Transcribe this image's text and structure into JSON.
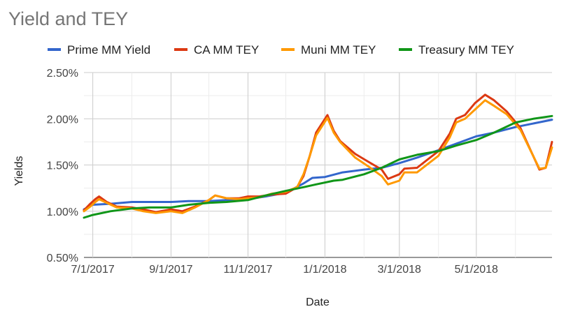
{
  "chart_data": {
    "type": "line",
    "title": "Yield and TEY",
    "xlabel": "Date",
    "ylabel": "Yields",
    "x_ticks": [
      "7/1/2017",
      "9/1/2017",
      "11/1/2017",
      "1/1/2018",
      "3/1/2018",
      "5/1/2018"
    ],
    "y_ticks": [
      "0.50%",
      "1.00%",
      "1.50%",
      "2.00%",
      "2.50%"
    ],
    "xlim": [
      "2017-06-24",
      "2018-06-30"
    ],
    "ylim": [
      0.5,
      2.5
    ],
    "grid": true,
    "legend_position": "top",
    "series": [
      {
        "name": "Prime MM Yield",
        "color": "#3366cc",
        "points": [
          [
            "2017-06-24",
            1.02
          ],
          [
            "2017-07-01",
            1.07
          ],
          [
            "2017-07-15",
            1.08
          ],
          [
            "2017-08-01",
            1.1
          ],
          [
            "2017-08-15",
            1.1
          ],
          [
            "2017-09-01",
            1.1
          ],
          [
            "2017-09-15",
            1.11
          ],
          [
            "2017-10-01",
            1.11
          ],
          [
            "2017-10-15",
            1.12
          ],
          [
            "2017-11-01",
            1.13
          ],
          [
            "2017-11-15",
            1.16
          ],
          [
            "2017-12-01",
            1.2
          ],
          [
            "2017-12-15",
            1.3
          ],
          [
            "2017-12-22",
            1.36
          ],
          [
            "2018-01-01",
            1.37
          ],
          [
            "2018-01-15",
            1.42
          ],
          [
            "2018-02-01",
            1.45
          ],
          [
            "2018-02-15",
            1.47
          ],
          [
            "2018-03-01",
            1.52
          ],
          [
            "2018-03-15",
            1.58
          ],
          [
            "2018-04-01",
            1.66
          ],
          [
            "2018-04-15",
            1.73
          ],
          [
            "2018-05-01",
            1.81
          ],
          [
            "2018-05-15",
            1.85
          ],
          [
            "2018-06-01",
            1.91
          ],
          [
            "2018-06-30",
            1.99
          ]
        ]
      },
      {
        "name": "CA MM TEY",
        "color": "#dc3912",
        "points": [
          [
            "2017-06-24",
            1.01
          ],
          [
            "2017-06-29",
            1.08
          ],
          [
            "2017-07-03",
            1.13
          ],
          [
            "2017-07-06",
            1.16
          ],
          [
            "2017-07-12",
            1.1
          ],
          [
            "2017-07-20",
            1.05
          ],
          [
            "2017-08-01",
            1.04
          ],
          [
            "2017-08-10",
            1.02
          ],
          [
            "2017-08-20",
            0.99
          ],
          [
            "2017-09-01",
            1.02
          ],
          [
            "2017-09-10",
            1.0
          ],
          [
            "2017-09-20",
            1.05
          ],
          [
            "2017-10-01",
            1.12
          ],
          [
            "2017-10-06",
            1.17
          ],
          [
            "2017-10-15",
            1.14
          ],
          [
            "2017-10-25",
            1.14
          ],
          [
            "2017-11-01",
            1.16
          ],
          [
            "2017-11-10",
            1.16
          ],
          [
            "2017-11-20",
            1.18
          ],
          [
            "2017-12-01",
            1.19
          ],
          [
            "2017-12-10",
            1.26
          ],
          [
            "2017-12-15",
            1.38
          ],
          [
            "2017-12-20",
            1.6
          ],
          [
            "2017-12-25",
            1.85
          ],
          [
            "2018-01-03",
            2.04
          ],
          [
            "2018-01-08",
            1.87
          ],
          [
            "2018-01-13",
            1.76
          ],
          [
            "2018-01-25",
            1.62
          ],
          [
            "2018-02-05",
            1.53
          ],
          [
            "2018-02-15",
            1.45
          ],
          [
            "2018-02-20",
            1.35
          ],
          [
            "2018-03-01",
            1.4
          ],
          [
            "2018-03-05",
            1.46
          ],
          [
            "2018-03-15",
            1.47
          ],
          [
            "2018-04-01",
            1.65
          ],
          [
            "2018-04-10",
            1.84
          ],
          [
            "2018-04-15",
            2.0
          ],
          [
            "2018-04-22",
            2.04
          ],
          [
            "2018-04-30",
            2.17
          ],
          [
            "2018-05-08",
            2.26
          ],
          [
            "2018-05-15",
            2.2
          ],
          [
            "2018-05-25",
            2.08
          ],
          [
            "2018-06-05",
            1.9
          ],
          [
            "2018-06-15",
            1.6
          ],
          [
            "2018-06-20",
            1.45
          ],
          [
            "2018-06-25",
            1.47
          ],
          [
            "2018-06-30",
            1.75
          ]
        ]
      },
      {
        "name": "Muni MM TEY",
        "color": "#ff9900",
        "points": [
          [
            "2017-06-24",
            1.0
          ],
          [
            "2017-06-29",
            1.05
          ],
          [
            "2017-07-03",
            1.1
          ],
          [
            "2017-07-06",
            1.13
          ],
          [
            "2017-07-12",
            1.09
          ],
          [
            "2017-07-20",
            1.04
          ],
          [
            "2017-08-01",
            1.03
          ],
          [
            "2017-08-10",
            1.0
          ],
          [
            "2017-08-20",
            0.98
          ],
          [
            "2017-09-01",
            1.0
          ],
          [
            "2017-09-10",
            0.98
          ],
          [
            "2017-09-20",
            1.04
          ],
          [
            "2017-10-01",
            1.12
          ],
          [
            "2017-10-06",
            1.17
          ],
          [
            "2017-10-15",
            1.14
          ],
          [
            "2017-10-25",
            1.13
          ],
          [
            "2017-11-01",
            1.14
          ],
          [
            "2017-11-10",
            1.15
          ],
          [
            "2017-11-20",
            1.19
          ],
          [
            "2017-12-01",
            1.21
          ],
          [
            "2017-12-10",
            1.26
          ],
          [
            "2017-12-15",
            1.4
          ],
          [
            "2017-12-20",
            1.6
          ],
          [
            "2017-12-25",
            1.82
          ],
          [
            "2018-01-03",
            2.01
          ],
          [
            "2018-01-08",
            1.85
          ],
          [
            "2018-01-13",
            1.75
          ],
          [
            "2018-01-25",
            1.58
          ],
          [
            "2018-02-05",
            1.48
          ],
          [
            "2018-02-15",
            1.38
          ],
          [
            "2018-02-20",
            1.29
          ],
          [
            "2018-03-01",
            1.33
          ],
          [
            "2018-03-05",
            1.42
          ],
          [
            "2018-03-15",
            1.42
          ],
          [
            "2018-04-01",
            1.6
          ],
          [
            "2018-04-10",
            1.8
          ],
          [
            "2018-04-15",
            1.96
          ],
          [
            "2018-04-22",
            2.0
          ],
          [
            "2018-04-30",
            2.1
          ],
          [
            "2018-05-08",
            2.2
          ],
          [
            "2018-05-15",
            2.14
          ],
          [
            "2018-05-25",
            2.05
          ],
          [
            "2018-06-05",
            1.88
          ],
          [
            "2018-06-15",
            1.6
          ],
          [
            "2018-06-20",
            1.46
          ],
          [
            "2018-06-25",
            1.47
          ],
          [
            "2018-06-30",
            1.69
          ]
        ]
      },
      {
        "name": "Treasury MM TEY",
        "color": "#109618",
        "points": [
          [
            "2017-06-24",
            0.93
          ],
          [
            "2017-07-01",
            0.96
          ],
          [
            "2017-07-15",
            1.0
          ],
          [
            "2017-08-01",
            1.03
          ],
          [
            "2017-08-15",
            1.04
          ],
          [
            "2017-09-01",
            1.04
          ],
          [
            "2017-09-15",
            1.07
          ],
          [
            "2017-10-01",
            1.09
          ],
          [
            "2017-10-15",
            1.1
          ],
          [
            "2017-11-01",
            1.12
          ],
          [
            "2017-11-15",
            1.17
          ],
          [
            "2017-12-01",
            1.22
          ],
          [
            "2017-12-15",
            1.26
          ],
          [
            "2017-12-25",
            1.29
          ],
          [
            "2018-01-08",
            1.33
          ],
          [
            "2018-01-15",
            1.34
          ],
          [
            "2018-02-01",
            1.4
          ],
          [
            "2018-02-15",
            1.47
          ],
          [
            "2018-03-01",
            1.56
          ],
          [
            "2018-03-15",
            1.61
          ],
          [
            "2018-04-01",
            1.65
          ],
          [
            "2018-04-15",
            1.71
          ],
          [
            "2018-05-01",
            1.77
          ],
          [
            "2018-05-15",
            1.85
          ],
          [
            "2018-06-01",
            1.96
          ],
          [
            "2018-06-15",
            2.0
          ],
          [
            "2018-06-30",
            2.03
          ]
        ]
      }
    ]
  }
}
